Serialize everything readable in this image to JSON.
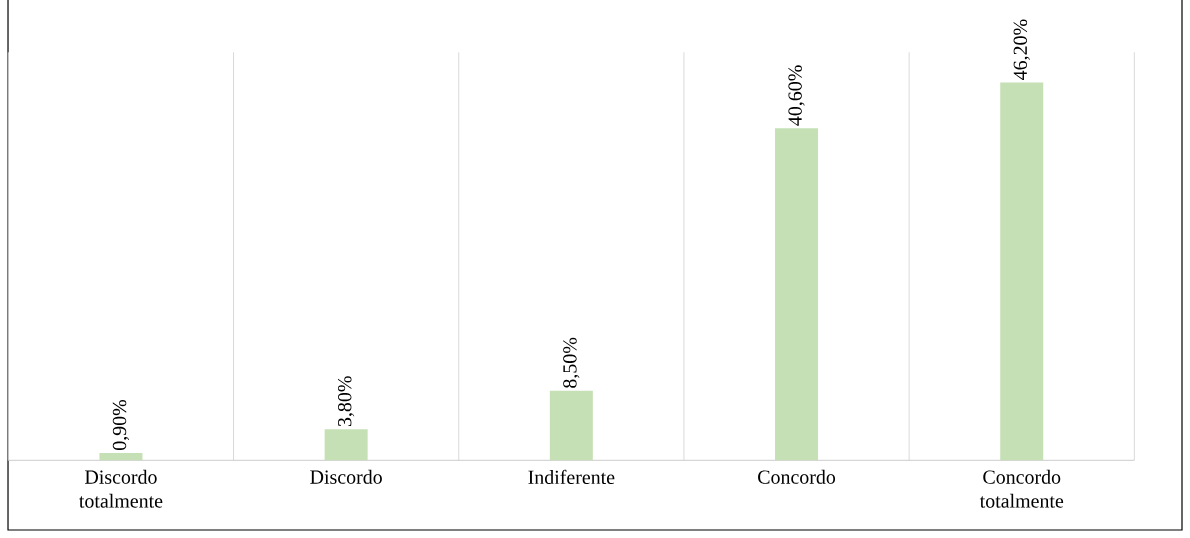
{
  "chart_data": {
    "type": "bar",
    "categories": [
      "Discordo totalmente",
      "Discordo",
      "Indiferente",
      "Concordo",
      "Concordo totalmente"
    ],
    "values": [
      0.9,
      3.8,
      8.5,
      40.6,
      46.2
    ],
    "value_labels": [
      "0,90%",
      "3,80%",
      "8,50%",
      "40,60%",
      "46,20%"
    ],
    "color": "#c5e0b4",
    "grid": "x"
  }
}
